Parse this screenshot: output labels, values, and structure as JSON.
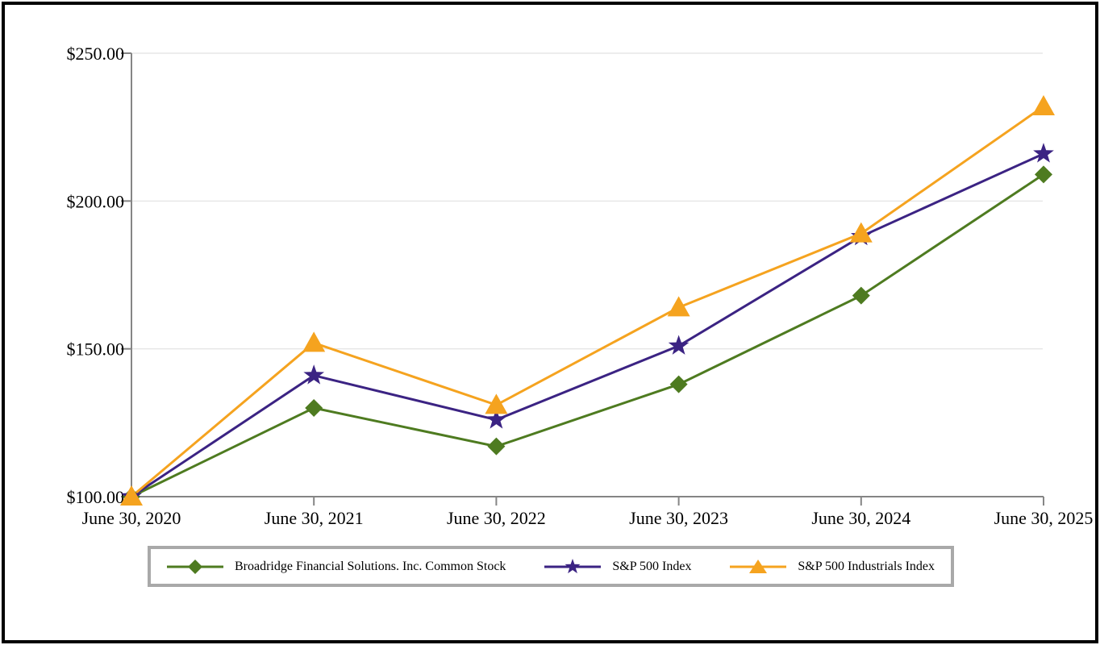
{
  "chart_data": {
    "type": "line",
    "title": "",
    "xlabel": "",
    "ylabel": "",
    "x_labels": [
      "June 30, 2020",
      "June 30, 2021",
      "June 30, 2022",
      "June 30, 2023",
      "June 30, 2024",
      "June 30, 2025"
    ],
    "y_axis": {
      "min": 100,
      "max": 250,
      "tick_values": [
        100,
        150,
        200,
        250
      ],
      "tick_labels": [
        "$100.00",
        "$150.00",
        "$200.00",
        "$250.00"
      ]
    },
    "grid": {
      "horizontal": true,
      "gridline_values": [
        150,
        200,
        250
      ]
    },
    "legend_position": "bottom",
    "series": [
      {
        "name": "Broadridge Financial Solutions. Inc. Common Stock",
        "marker": "diamond",
        "color": "#4e7b20",
        "values": [
          100,
          130,
          117,
          138,
          168,
          209
        ]
      },
      {
        "name": "S&P 500 Index",
        "marker": "star",
        "color": "#3b2383",
        "values": [
          100,
          141,
          126,
          151,
          188,
          216
        ]
      },
      {
        "name": "S&P 500 Industrials Index",
        "marker": "triangle",
        "color": "#f5a31f",
        "values": [
          100,
          152,
          131,
          164,
          189,
          232
        ]
      }
    ],
    "colors": {
      "axis": "#858585",
      "grid": "#e7e7e7",
      "text": "#000000",
      "legend_border": "#a9a9a9",
      "page_border": "#000000",
      "background": "#ffffff"
    }
  }
}
